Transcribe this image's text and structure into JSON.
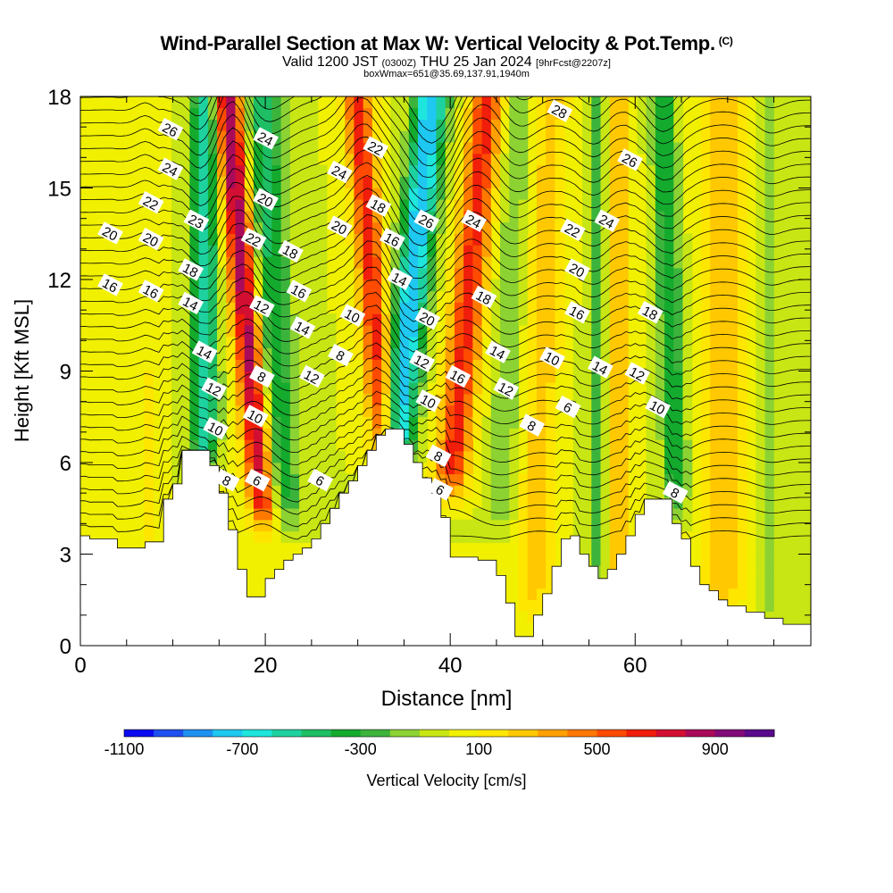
{
  "header": {
    "title": "Wind-Parallel Section at Max W: Vertical Velocity & Pot.Temp.",
    "copyright": "(C)",
    "valid_prefix": "Valid 1200 JST",
    "valid_utc": "(0300Z)",
    "valid_date": "THU 25 Jan 2024",
    "forecast": "[9hrFcst@2207z]",
    "box_info": "boxWmax=651@35.69,137.91,1940m"
  },
  "chart_data": {
    "type": "heatmap",
    "xlabel": "Distance [nm]",
    "ylabel": "Height [Kft MSL]",
    "xlim": [
      0,
      79
    ],
    "ylim": [
      0,
      18
    ],
    "x_ticks": [
      "0",
      "20",
      "40",
      "60"
    ],
    "y_ticks": [
      "0",
      "3",
      "6",
      "9",
      "12",
      "15",
      "18"
    ],
    "colorbar_label": "Vertical Velocity [cm/s]",
    "colorbar_ticks": [
      "-1100",
      "-700",
      "-300",
      "100",
      "500",
      "900"
    ],
    "colorbar_levels": [
      -1100,
      -1000,
      -900,
      -800,
      -700,
      -600,
      -500,
      -400,
      -300,
      -200,
      -100,
      0,
      100,
      200,
      300,
      400,
      500,
      600,
      700,
      800,
      900,
      1000
    ],
    "colorbar_colors": [
      "#0a0af0",
      "#1e50f0",
      "#1e90f0",
      "#1ec8f0",
      "#1ee6dc",
      "#1ed2a0",
      "#1ebe64",
      "#14aa2d",
      "#3cb43c",
      "#8cd232",
      "#c8e614",
      "#f0f000",
      "#ffe600",
      "#ffc800",
      "#ffa000",
      "#ff7800",
      "#ff4b00",
      "#f01e0a",
      "#d20f32",
      "#aa0a5a",
      "#820a78",
      "#5a0a8c"
    ],
    "terrain": [
      [
        0,
        3.6
      ],
      [
        1,
        3.6
      ],
      [
        1,
        3.5
      ],
      [
        2,
        3.5
      ],
      [
        3,
        3.5
      ],
      [
        4,
        3.5
      ],
      [
        4,
        3.2
      ],
      [
        5,
        3.2
      ],
      [
        6,
        3.2
      ],
      [
        7,
        3.2
      ],
      [
        7,
        3.4
      ],
      [
        8,
        3.4
      ],
      [
        9,
        3.4
      ],
      [
        9,
        4.8
      ],
      [
        10,
        4.8
      ],
      [
        10,
        5.3
      ],
      [
        11,
        5.3
      ],
      [
        11,
        6.4
      ],
      [
        12,
        6.4
      ],
      [
        13,
        6.4
      ],
      [
        14,
        6.4
      ],
      [
        14,
        5.9
      ],
      [
        15,
        5.9
      ],
      [
        15,
        5.0
      ],
      [
        16,
        5.0
      ],
      [
        16,
        3.8
      ],
      [
        17,
        3.8
      ],
      [
        17,
        2.5
      ],
      [
        18,
        2.5
      ],
      [
        18,
        1.6
      ],
      [
        19,
        1.6
      ],
      [
        20,
        1.6
      ],
      [
        20,
        2.2
      ],
      [
        21,
        2.2
      ],
      [
        21,
        2.5
      ],
      [
        22,
        2.5
      ],
      [
        22,
        2.8
      ],
      [
        23,
        2.8
      ],
      [
        23,
        3.0
      ],
      [
        24,
        3.0
      ],
      [
        24,
        3.2
      ],
      [
        25,
        3.2
      ],
      [
        25,
        3.5
      ],
      [
        26,
        3.5
      ],
      [
        26,
        4.0
      ],
      [
        27,
        4.0
      ],
      [
        27,
        4.5
      ],
      [
        28,
        4.5
      ],
      [
        28,
        5.0
      ],
      [
        29,
        5.0
      ],
      [
        29,
        5.4
      ],
      [
        30,
        5.4
      ],
      [
        30,
        5.9
      ],
      [
        31,
        5.9
      ],
      [
        31,
        6.4
      ],
      [
        32,
        6.4
      ],
      [
        32,
        6.9
      ],
      [
        33,
        6.9
      ],
      [
        33,
        7.1
      ],
      [
        34,
        7.1
      ],
      [
        35,
        7.1
      ],
      [
        35,
        6.6
      ],
      [
        36,
        6.6
      ],
      [
        36,
        6.0
      ],
      [
        37,
        6.0
      ],
      [
        37,
        5.5
      ],
      [
        38,
        5.5
      ],
      [
        38,
        5.0
      ],
      [
        39,
        5.0
      ],
      [
        39,
        4.2
      ],
      [
        40,
        4.2
      ],
      [
        40,
        2.9
      ],
      [
        41,
        2.9
      ],
      [
        42,
        2.9
      ],
      [
        43,
        2.9
      ],
      [
        43,
        2.8
      ],
      [
        44,
        2.8
      ],
      [
        45,
        2.8
      ],
      [
        45,
        2.3
      ],
      [
        46,
        2.3
      ],
      [
        46,
        1.4
      ],
      [
        47,
        1.4
      ],
      [
        47,
        0.3
      ],
      [
        48,
        0.3
      ],
      [
        49,
        0.3
      ],
      [
        49,
        1.0
      ],
      [
        50,
        1.0
      ],
      [
        50,
        1.7
      ],
      [
        51,
        1.7
      ],
      [
        51,
        2.6
      ],
      [
        52,
        2.6
      ],
      [
        52,
        3.5
      ],
      [
        53,
        3.5
      ],
      [
        53,
        3.6
      ],
      [
        54,
        3.6
      ],
      [
        54,
        3.0
      ],
      [
        55,
        3.0
      ],
      [
        55,
        2.6
      ],
      [
        56,
        2.6
      ],
      [
        56,
        2.2
      ],
      [
        57,
        2.2
      ],
      [
        57,
        2.5
      ],
      [
        58,
        2.5
      ],
      [
        58,
        3.0
      ],
      [
        59,
        3.0
      ],
      [
        59,
        3.6
      ],
      [
        60,
        3.6
      ],
      [
        60,
        4.3
      ],
      [
        61,
        4.3
      ],
      [
        61,
        4.8
      ],
      [
        62,
        4.8
      ],
      [
        63,
        4.8
      ],
      [
        64,
        4.8
      ],
      [
        64,
        4.0
      ],
      [
        65,
        4.0
      ],
      [
        65,
        3.5
      ],
      [
        66,
        3.5
      ],
      [
        66,
        2.6
      ],
      [
        67,
        2.6
      ],
      [
        67,
        2.0
      ],
      [
        68,
        2.0
      ],
      [
        68,
        1.8
      ],
      [
        69,
        1.8
      ],
      [
        69,
        1.5
      ],
      [
        70,
        1.5
      ],
      [
        70,
        1.3
      ],
      [
        71,
        1.3
      ],
      [
        72,
        1.3
      ],
      [
        72,
        1.1
      ],
      [
        73,
        1.1
      ],
      [
        74,
        1.1
      ],
      [
        74,
        0.9
      ],
      [
        75,
        0.9
      ],
      [
        76,
        0.9
      ],
      [
        76,
        0.7
      ],
      [
        77,
        0.7
      ],
      [
        78,
        0.7
      ],
      [
        79,
        0.7
      ]
    ],
    "bands": [
      {
        "x0": 13.5,
        "x1": 13.5,
        "top": 18,
        "bottom": 6,
        "w": 1.4,
        "amp": -600
      },
      {
        "x0": 16.0,
        "x1": 20.0,
        "top": 18,
        "bottom": 4,
        "w": 1.6,
        "amp": 950
      },
      {
        "x0": 19.5,
        "x1": 21.5,
        "top": 18,
        "bottom": 4,
        "w": 2.2,
        "amp": -450
      },
      {
        "x0": 30.0,
        "x1": 33.0,
        "top": 18,
        "bottom": 6,
        "w": 1.5,
        "amp": 650
      },
      {
        "x0": 38.0,
        "x1": 34.0,
        "top": 18,
        "bottom": 6,
        "w": 1.8,
        "amp": -800
      },
      {
        "x0": 44.0,
        "x1": 40.0,
        "top": 18,
        "bottom": 5,
        "w": 1.8,
        "amp": 650
      },
      {
        "x0": 47.5,
        "x1": 45.5,
        "top": 18,
        "bottom": 4,
        "w": 1.5,
        "amp": -200
      },
      {
        "x0": 51.0,
        "x1": 49.0,
        "top": 18,
        "bottom": 1,
        "w": 2.0,
        "amp": 250
      },
      {
        "x0": 56.0,
        "x1": 56.0,
        "top": 18,
        "bottom": 2,
        "w": 1.2,
        "amp": -250
      },
      {
        "x0": 58.0,
        "x1": 58.0,
        "top": 18,
        "bottom": 2,
        "w": 1.5,
        "amp": 300
      },
      {
        "x0": 63.0,
        "x1": 64.5,
        "top": 18,
        "bottom": 4.5,
        "w": 1.3,
        "amp": -400
      },
      {
        "x0": 69.5,
        "x1": 69.5,
        "top": 18,
        "bottom": 1,
        "w": 2.5,
        "amp": 250
      },
      {
        "x0": 74.5,
        "x1": 74.5,
        "top": 18,
        "bottom": 1,
        "w": 1.2,
        "amp": -180
      },
      {
        "x0": 7.0,
        "x1": 7.0,
        "top": 8,
        "bottom": 3,
        "w": 0.8,
        "amp": 150
      },
      {
        "x0": 3.0,
        "x1": 3.0,
        "top": 18,
        "bottom": 3,
        "w": 3.0,
        "amp": 40
      }
    ],
    "isentrope_labels": [
      {
        "text": "26",
        "x": 9.7,
        "y": 16.9
      },
      {
        "text": "24",
        "x": 9.7,
        "y": 15.6
      },
      {
        "text": "22",
        "x": 7.6,
        "y": 14.5
      },
      {
        "text": "20",
        "x": 3.2,
        "y": 13.5
      },
      {
        "text": "20",
        "x": 7.6,
        "y": 13.3
      },
      {
        "text": "16",
        "x": 3.2,
        "y": 11.8
      },
      {
        "text": "16",
        "x": 7.6,
        "y": 11.6
      },
      {
        "text": "18",
        "x": 11.9,
        "y": 12.3
      },
      {
        "text": "14",
        "x": 11.9,
        "y": 11.2
      },
      {
        "text": "23",
        "x": 12.5,
        "y": 13.9
      },
      {
        "text": "14",
        "x": 13.4,
        "y": 9.6
      },
      {
        "text": "12",
        "x": 14.4,
        "y": 8.4
      },
      {
        "text": "10",
        "x": 14.6,
        "y": 7.1
      },
      {
        "text": "8",
        "x": 15.8,
        "y": 5.4
      },
      {
        "text": "6",
        "x": 19.1,
        "y": 5.4
      },
      {
        "text": "10",
        "x": 18.9,
        "y": 7.5
      },
      {
        "text": "8",
        "x": 19.6,
        "y": 8.8
      },
      {
        "text": "12",
        "x": 19.6,
        "y": 11.1
      },
      {
        "text": "22",
        "x": 18.7,
        "y": 13.3
      },
      {
        "text": "20",
        "x": 20.0,
        "y": 14.6
      },
      {
        "text": "24",
        "x": 20.0,
        "y": 16.6
      },
      {
        "text": "18",
        "x": 22.7,
        "y": 12.9
      },
      {
        "text": "16",
        "x": 23.6,
        "y": 11.6
      },
      {
        "text": "14",
        "x": 24.0,
        "y": 10.4
      },
      {
        "text": "12",
        "x": 25.0,
        "y": 8.8
      },
      {
        "text": "6",
        "x": 25.9,
        "y": 5.4
      },
      {
        "text": "24",
        "x": 28.0,
        "y": 15.5
      },
      {
        "text": "20",
        "x": 28.0,
        "y": 13.7
      },
      {
        "text": "10",
        "x": 29.4,
        "y": 10.8
      },
      {
        "text": "8",
        "x": 28.1,
        "y": 9.5
      },
      {
        "text": "22",
        "x": 31.9,
        "y": 16.3
      },
      {
        "text": "18",
        "x": 32.2,
        "y": 14.4
      },
      {
        "text": "16",
        "x": 33.7,
        "y": 13.3
      },
      {
        "text": "14",
        "x": 34.5,
        "y": 12.0
      },
      {
        "text": "26",
        "x": 37.4,
        "y": 13.9
      },
      {
        "text": "20",
        "x": 37.5,
        "y": 10.7
      },
      {
        "text": "12",
        "x": 36.9,
        "y": 9.3
      },
      {
        "text": "10",
        "x": 37.6,
        "y": 8.0
      },
      {
        "text": "8",
        "x": 38.7,
        "y": 6.2
      },
      {
        "text": "6",
        "x": 38.9,
        "y": 5.1
      },
      {
        "text": "24",
        "x": 42.5,
        "y": 13.9
      },
      {
        "text": "18",
        "x": 43.6,
        "y": 11.4
      },
      {
        "text": "16",
        "x": 40.8,
        "y": 8.8
      },
      {
        "text": "14",
        "x": 45.1,
        "y": 9.6
      },
      {
        "text": "12",
        "x": 46.0,
        "y": 8.4
      },
      {
        "text": "8",
        "x": 48.8,
        "y": 7.2
      },
      {
        "text": "10",
        "x": 51.0,
        "y": 9.4
      },
      {
        "text": "6",
        "x": 52.7,
        "y": 7.8
      },
      {
        "text": "28",
        "x": 51.8,
        "y": 17.5
      },
      {
        "text": "26",
        "x": 59.4,
        "y": 15.9
      },
      {
        "text": "24",
        "x": 56.9,
        "y": 13.9
      },
      {
        "text": "22",
        "x": 53.2,
        "y": 13.6
      },
      {
        "text": "20",
        "x": 53.7,
        "y": 12.3
      },
      {
        "text": "16",
        "x": 53.7,
        "y": 10.9
      },
      {
        "text": "14",
        "x": 56.2,
        "y": 9.1
      },
      {
        "text": "12",
        "x": 60.2,
        "y": 8.9
      },
      {
        "text": "10",
        "x": 62.4,
        "y": 7.8
      },
      {
        "text": "8",
        "x": 64.3,
        "y": 5.0
      },
      {
        "text": "18",
        "x": 61.6,
        "y": 10.9
      }
    ]
  }
}
